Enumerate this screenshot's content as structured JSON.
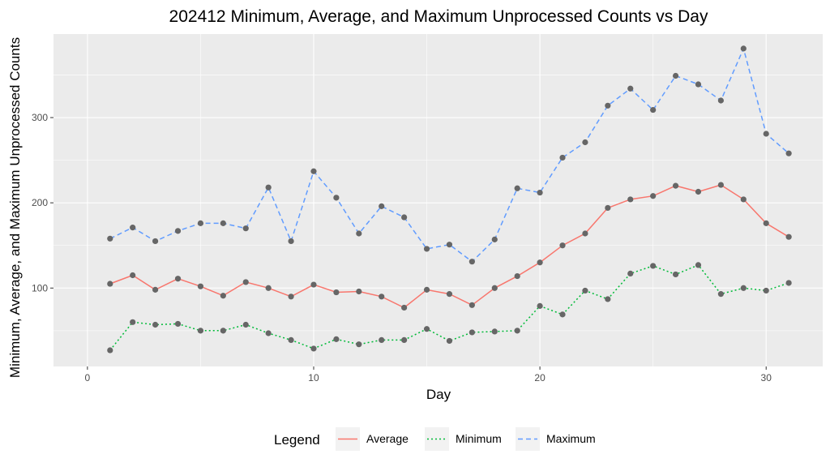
{
  "chart_data": {
    "type": "line",
    "title": "202412 Minimum, Average, and Maximum Unprocessed Counts vs Day",
    "xlabel": "Day",
    "ylabel": "Minimum, Average, and Maximum Unprocessed Counts",
    "xlim": [
      -1.5,
      32.5
    ],
    "ylim": [
      8,
      398
    ],
    "x_ticks": [
      0,
      10,
      20,
      30
    ],
    "y_ticks": [
      100,
      200,
      300
    ],
    "grid": true,
    "background": "#ebebeb",
    "point_color": "#666666",
    "legend": {
      "title": "Legend",
      "position": "bottom",
      "entries": [
        "Average",
        "Minimum",
        "Maximum"
      ]
    },
    "x": [
      1,
      2,
      3,
      4,
      5,
      6,
      7,
      8,
      9,
      10,
      11,
      12,
      13,
      14,
      15,
      16,
      17,
      18,
      19,
      20,
      21,
      22,
      23,
      24,
      25,
      26,
      27,
      28,
      29,
      30,
      31
    ],
    "series": [
      {
        "name": "Average",
        "color": "#f8766d",
        "linetype": "solid",
        "values": [
          105,
          115,
          98,
          111,
          102,
          91,
          107,
          100,
          90,
          104,
          95,
          96,
          90,
          77,
          98,
          93,
          80,
          100,
          114,
          130,
          150,
          164,
          194,
          204,
          208,
          220,
          213,
          221,
          204,
          176,
          160
        ]
      },
      {
        "name": "Minimum",
        "color": "#00ba38",
        "linetype": "dotted",
        "values": [
          27,
          60,
          57,
          58,
          50,
          50,
          57,
          47,
          39,
          29,
          40,
          34,
          39,
          39,
          52,
          38,
          48,
          49,
          50,
          79,
          69,
          97,
          87,
          117,
          126,
          116,
          127,
          93,
          100,
          97,
          106
        ]
      },
      {
        "name": "Maximum",
        "color": "#619cff",
        "linetype": "dashed",
        "values": [
          158,
          171,
          155,
          167,
          176,
          176,
          170,
          218,
          155,
          237,
          206,
          164,
          196,
          183,
          146,
          151,
          131,
          157,
          217,
          212,
          253,
          271,
          314,
          334,
          309,
          349,
          339,
          320,
          381,
          281,
          258
        ]
      }
    ]
  }
}
